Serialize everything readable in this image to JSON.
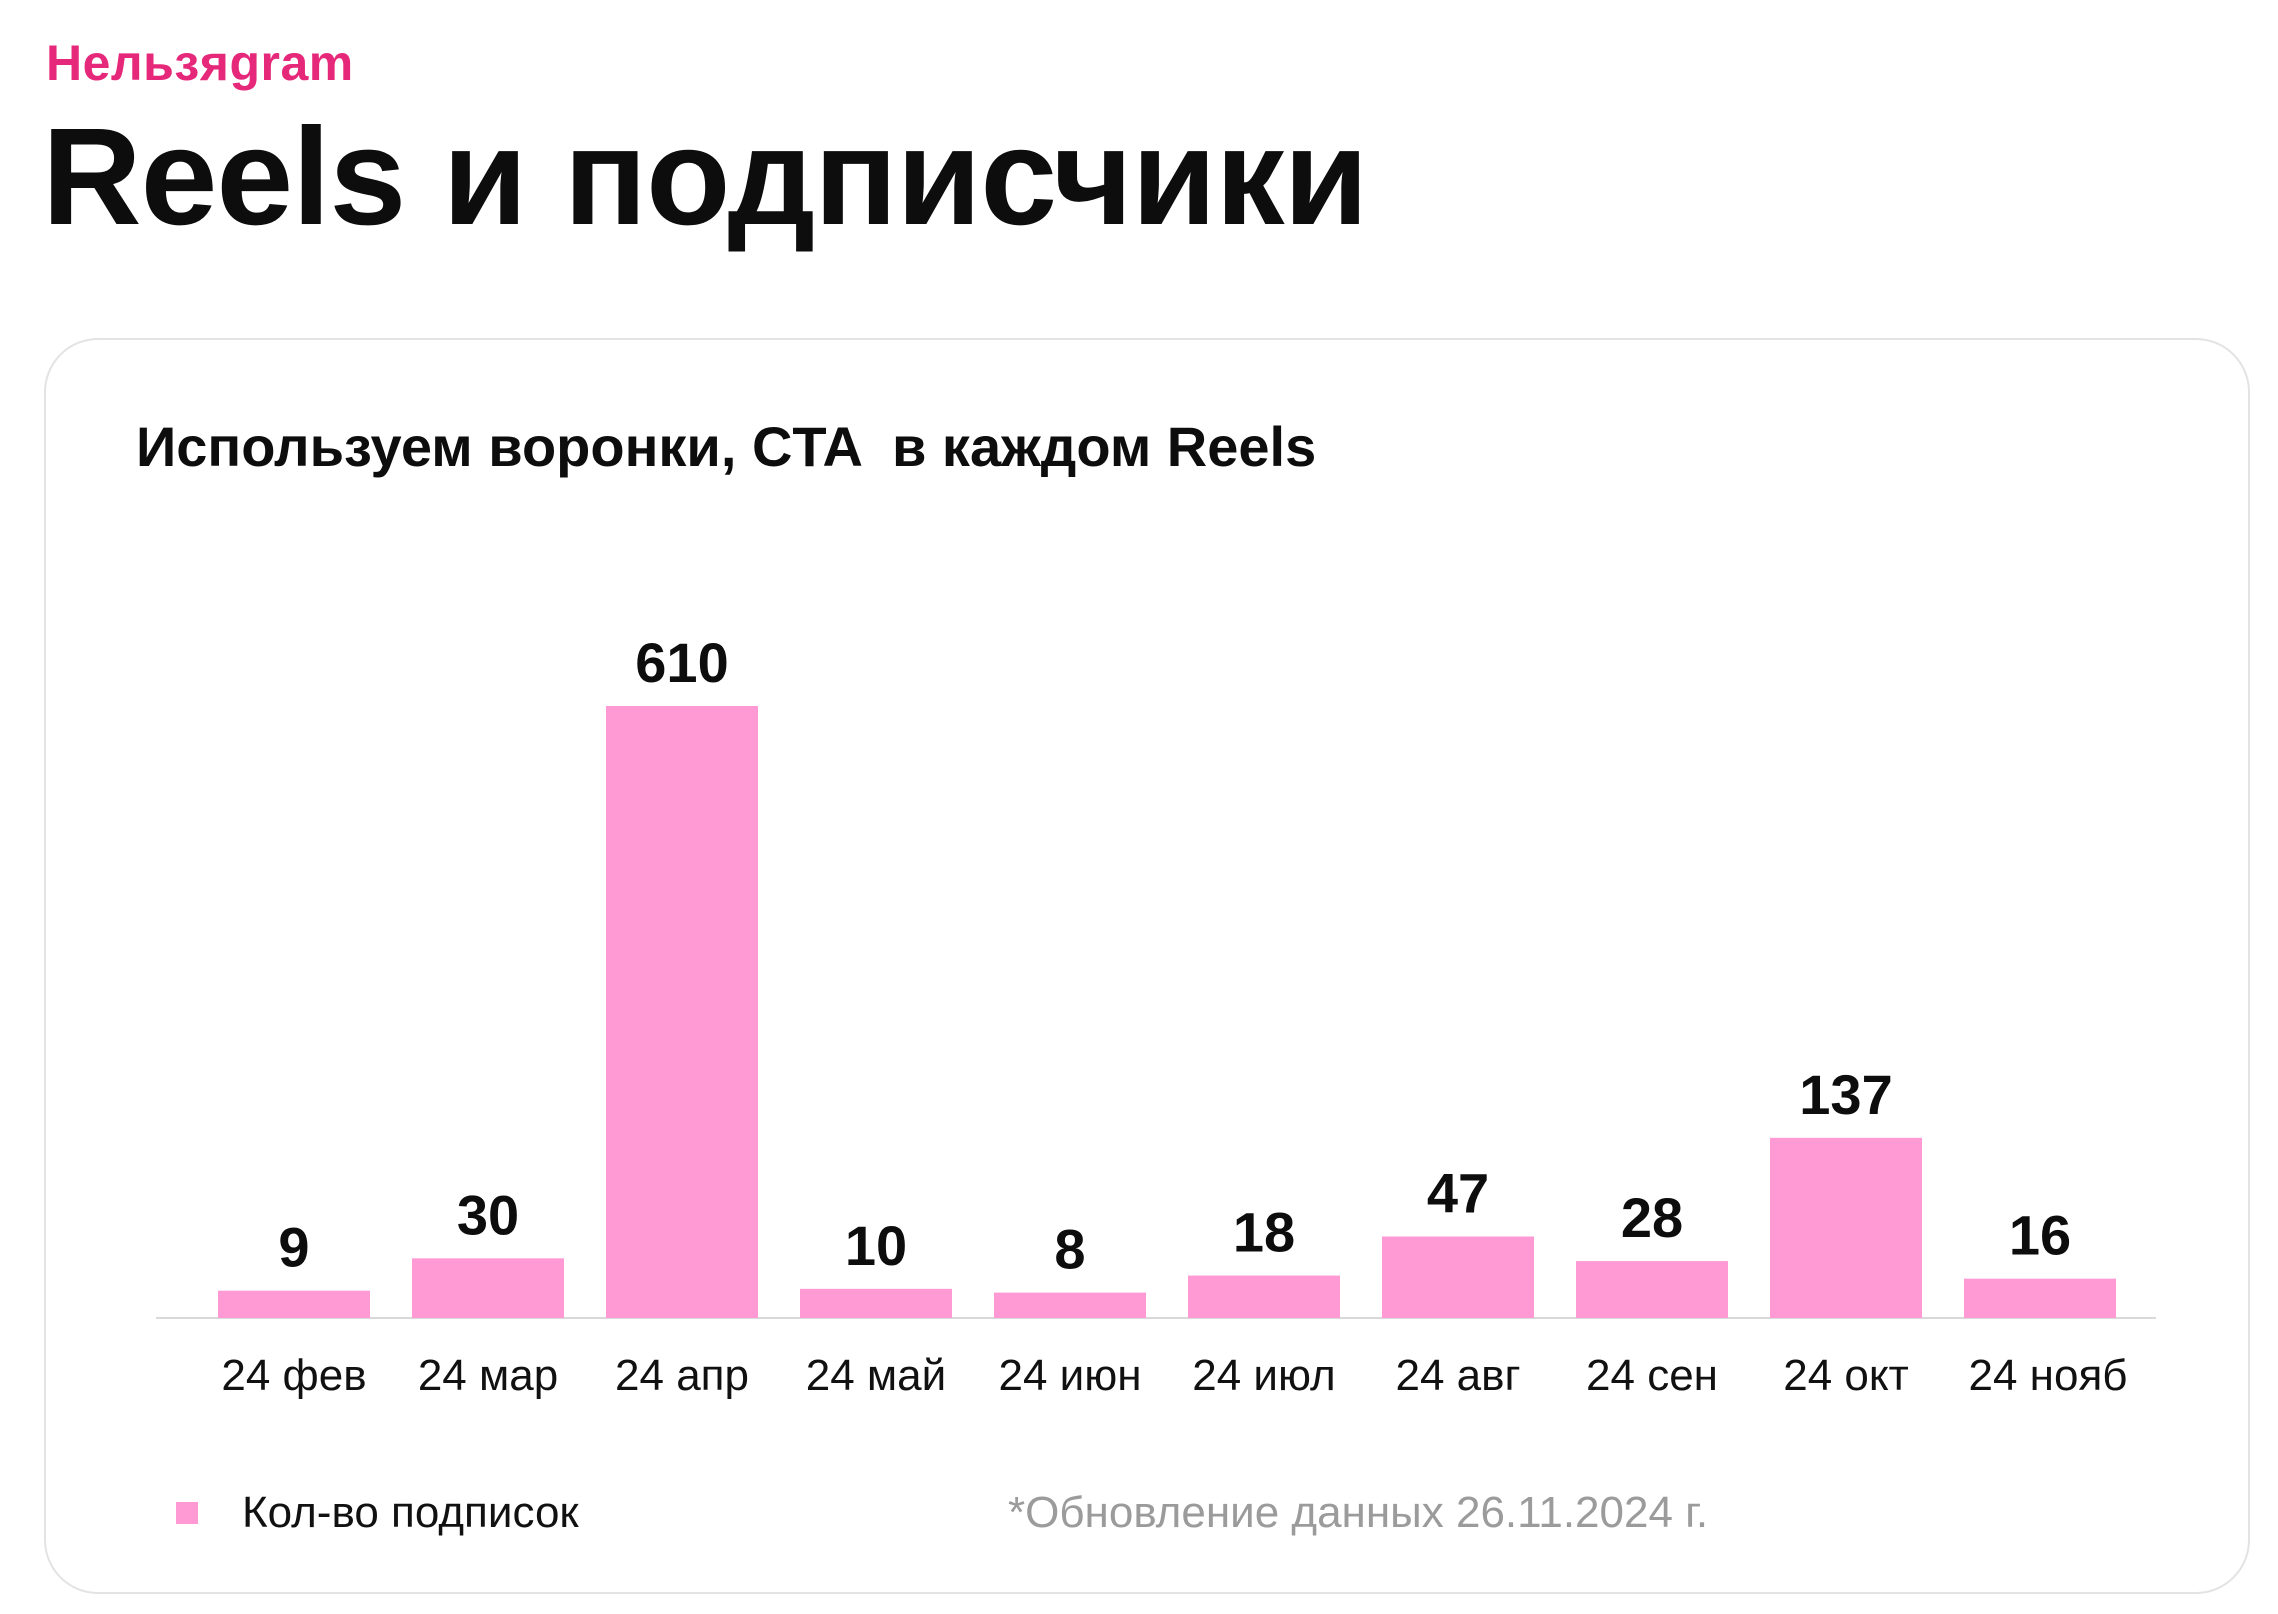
{
  "header": {
    "brand": "Нельзяgram",
    "title": "Reels и подписчики"
  },
  "colors": {
    "brand": "#e6287a",
    "bar": "#ff9ad5",
    "axis": "#d9d9d9",
    "footnote": "#9b9b9b"
  },
  "chart_data": {
    "type": "bar",
    "title": "Используем воронки, CTA  в каждом Reels",
    "categories": [
      "24 фев",
      "24 мар",
      "24 апр",
      "24 май",
      "24 июн",
      "24 июл",
      "24 авг",
      "24 сен",
      "24 окт",
      "24 нояб"
    ],
    "series": [
      {
        "name": "Кол-во подписок",
        "values": [
          9,
          30,
          610,
          10,
          8,
          18,
          47,
          28,
          137,
          16
        ]
      }
    ],
    "data_labels": [
      "9",
      "30",
      "610",
      "10",
      "8",
      "18",
      "47",
      "28",
      "137",
      "16"
    ],
    "xlabel": "",
    "ylabel": "",
    "grid": false,
    "legend_position": "bottom-left"
  },
  "footnote": "*Обновление данных 26.11.2024 г."
}
